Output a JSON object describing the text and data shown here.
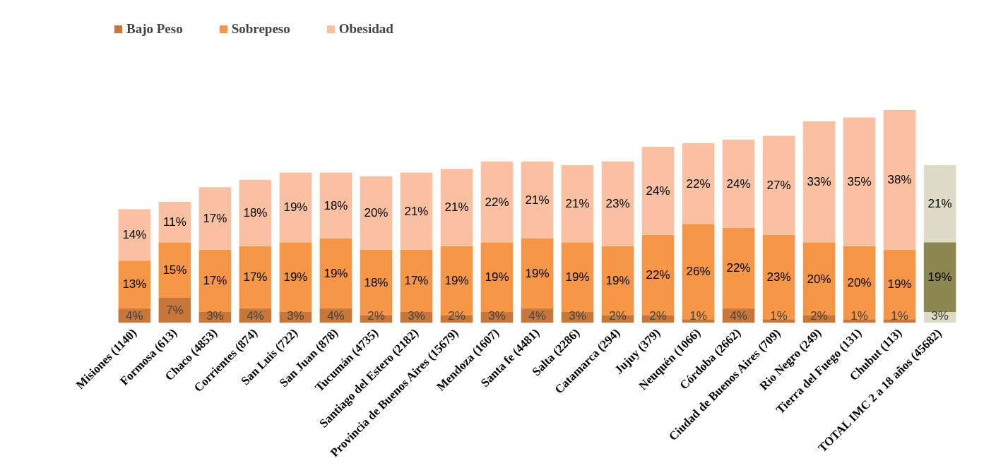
{
  "chart_data": {
    "type": "bar",
    "stacked": true,
    "legend": "top left",
    "categories": [
      "Misiones (1140)",
      "Formosa (613)",
      "Chaco (4853)",
      "Corrientes (874)",
      "San Luis (722)",
      "San Juan (878)",
      "Tucumán (4735)",
      "Santiago del Estero (2182)",
      "Provincia de Buenos Aires (15679)",
      "Mendoza (1607)",
      "Santa fe (4481)",
      "Salta (2286)",
      "Catamarca (294)",
      "Jujuy (379)",
      "Neuquén (1066)",
      "Córdoba (2662)",
      "Ciudad de Buenos Aires (709)",
      "Rio Negro (249)",
      "Tierra del Fuego (131)",
      "Chubut (113)",
      "TOTAL IMC 2 a 18 años (45682)"
    ],
    "series": [
      {
        "name": "Bajo Peso",
        "color": "#c8773a",
        "colors": [
          "#c8773a",
          "#c8773a",
          "#c8773a",
          "#c8773a",
          "#c8773a",
          "#c8773a",
          "#c8773a",
          "#c8773a",
          "#c8773a",
          "#c8773a",
          "#c8773a",
          "#c8773a",
          "#c8773a",
          "#c8773a",
          "#c8773a",
          "#c8773a",
          "#c8773a",
          "#c8773a",
          "#c8773a",
          "#c8773a",
          "#dddac6"
        ],
        "values": [
          4,
          7,
          3,
          4,
          3,
          4,
          2,
          3,
          2,
          3,
          4,
          3,
          2,
          2,
          1,
          4,
          1,
          2,
          1,
          1,
          3
        ],
        "value_labels": [
          "4%",
          "7%",
          "3%",
          "4%",
          "3%",
          "4%",
          "2%",
          "3%",
          "2%",
          "3%",
          "4%",
          "3%",
          "2%",
          "2%",
          "1%",
          "4%",
          "1%",
          "2%",
          "1%",
          "1%",
          "3%"
        ]
      },
      {
        "name": "Sobrepeso",
        "color": "#f79646",
        "colors": [
          "#f79646",
          "#f79646",
          "#f79646",
          "#f79646",
          "#f79646",
          "#f79646",
          "#f79646",
          "#f79646",
          "#f79646",
          "#f79646",
          "#f79646",
          "#f79646",
          "#f79646",
          "#f79646",
          "#f79646",
          "#f79646",
          "#f79646",
          "#f79646",
          "#f79646",
          "#f79646",
          "#8c8650"
        ],
        "values": [
          13,
          15,
          17,
          17,
          19,
          19,
          18,
          17,
          19,
          19,
          19,
          19,
          19,
          22,
          26,
          22,
          23,
          20,
          20,
          19,
          19
        ],
        "value_labels": [
          "13%",
          "15%",
          "17%",
          "17%",
          "19%",
          "19%",
          "18%",
          "17%",
          "19%",
          "19%",
          "19%",
          "19%",
          "19%",
          "22%",
          "26%",
          "22%",
          "23%",
          "20%",
          "20%",
          "19%",
          "19%"
        ]
      },
      {
        "name": "Obesidad",
        "color": "#fac0a2",
        "colors": [
          "#fac0a2",
          "#fac0a2",
          "#fac0a2",
          "#fac0a2",
          "#fac0a2",
          "#fac0a2",
          "#fac0a2",
          "#fac0a2",
          "#fac0a2",
          "#fac0a2",
          "#fac0a2",
          "#fac0a2",
          "#fac0a2",
          "#fac0a2",
          "#fac0a2",
          "#fac0a2",
          "#fac0a2",
          "#fac0a2",
          "#fac0a2",
          "#fac0a2",
          "#dddac6"
        ],
        "values": [
          14,
          11,
          17,
          18,
          19,
          18,
          20,
          21,
          21,
          22,
          21,
          21,
          23,
          24,
          22,
          24,
          27,
          33,
          35,
          38,
          21
        ],
        "value_labels": [
          "14%",
          "11%",
          "17%",
          "18%",
          "19%",
          "18%",
          "20%",
          "21%",
          "21%",
          "22%",
          "21%",
          "21%",
          "23%",
          "24%",
          "22%",
          "24%",
          "27%",
          "33%",
          "35%",
          "38%",
          "21%"
        ]
      }
    ]
  }
}
